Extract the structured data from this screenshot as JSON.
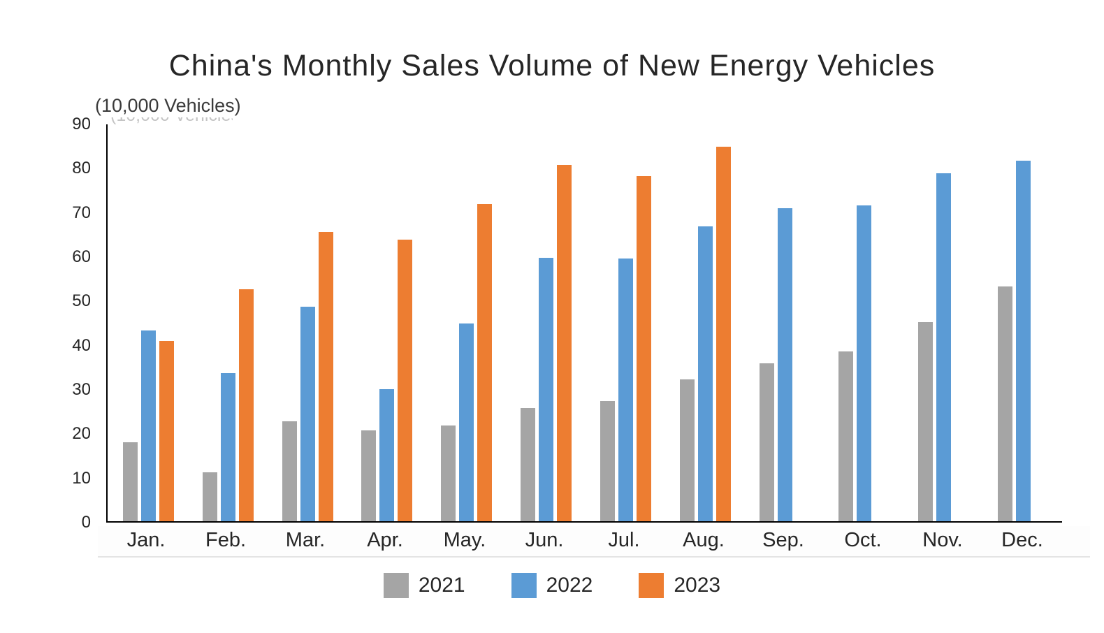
{
  "page": {
    "background": "#ffffff",
    "text_color": "#262626"
  },
  "chart_data": {
    "type": "bar",
    "title": "China's Monthly Sales Volume of New Energy Vehicles",
    "unit_label": "(10,000 Vehicles)",
    "categories": [
      "Jan.",
      "Feb.",
      "Mar.",
      "Apr.",
      "May.",
      "Jun.",
      "Jul.",
      "Aug.",
      "Sep.",
      "Oct.",
      "Nov.",
      "Dec."
    ],
    "series": [
      {
        "name": "2021",
        "color": "#A5A5A5",
        "values": [
          17.9,
          11.0,
          22.6,
          20.6,
          21.7,
          25.6,
          27.1,
          32.1,
          35.7,
          38.3,
          45.0,
          53.1
        ]
      },
      {
        "name": "2022",
        "color": "#5B9BD5",
        "values": [
          43.1,
          33.4,
          48.4,
          29.9,
          44.7,
          59.6,
          59.3,
          66.6,
          70.8,
          71.4,
          78.6,
          81.4
        ]
      },
      {
        "name": "2023",
        "color": "#ED7D31",
        "values": [
          40.8,
          52.5,
          65.3,
          63.6,
          71.7,
          80.6,
          78.0,
          84.6,
          null,
          null,
          null,
          null
        ]
      }
    ],
    "ylim": [
      0,
      90
    ],
    "yticks": [
      0,
      10,
      20,
      30,
      40,
      50,
      60,
      70,
      80,
      90
    ],
    "xlabel": "",
    "ylabel": "",
    "grid": false,
    "legend_position": "bottom",
    "axis_color": "#000000"
  }
}
